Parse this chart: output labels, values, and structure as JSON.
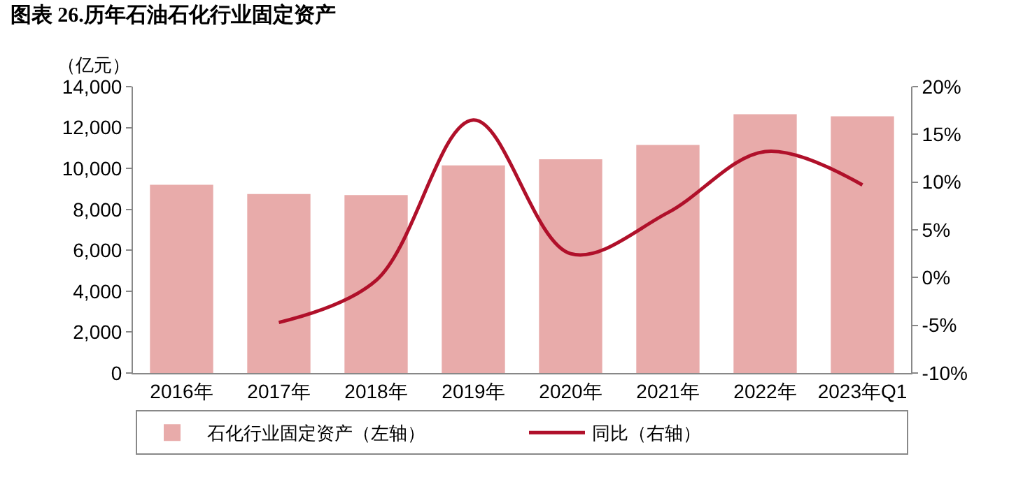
{
  "chart_data": {
    "type": "bar",
    "title": "图表 26.历年石油石化行业固定资产",
    "ylabel": "（亿元）",
    "categories": [
      "2016年",
      "2017年",
      "2018年",
      "2019年",
      "2020年",
      "2021年",
      "2022年",
      "2023年Q1"
    ],
    "series": [
      {
        "name": "石化行业固定资产（左轴）",
        "color": "#e8abaa",
        "values": [
          9200,
          8750,
          8700,
          10150,
          10450,
          11150,
          12650,
          12550
        ]
      },
      {
        "name": "同比（右轴）",
        "type": "line",
        "axis": "y2",
        "color": "#b0102a",
        "values": [
          null,
          -4.7,
          -0.3,
          16.5,
          2.5,
          6.8,
          13.2,
          9.7
        ]
      }
    ],
    "ylim": [
      0,
      14000
    ],
    "yticks": [
      {
        "value": 0,
        "label": "0"
      },
      {
        "value": 2000,
        "label": "2,000"
      },
      {
        "value": 4000,
        "label": "4,000"
      },
      {
        "value": 6000,
        "label": "6,000"
      },
      {
        "value": 8000,
        "label": "8,000"
      },
      {
        "value": 10000,
        "label": "10,000"
      },
      {
        "value": 12000,
        "label": "12,000"
      },
      {
        "value": 14000,
        "label": "14,000"
      }
    ],
    "y2lim": [
      -10,
      20
    ],
    "y2ticks": [
      {
        "value": -10,
        "label": "-10%"
      },
      {
        "value": -5,
        "label": "-5%"
      },
      {
        "value": 0,
        "label": "0%"
      },
      {
        "value": 5,
        "label": "5%"
      },
      {
        "value": 10,
        "label": "10%"
      },
      {
        "value": 15,
        "label": "15%"
      },
      {
        "value": 20,
        "label": "20%"
      }
    ],
    "legend": "bottom",
    "grid": false,
    "marker": "none",
    "line_style": "solid"
  }
}
